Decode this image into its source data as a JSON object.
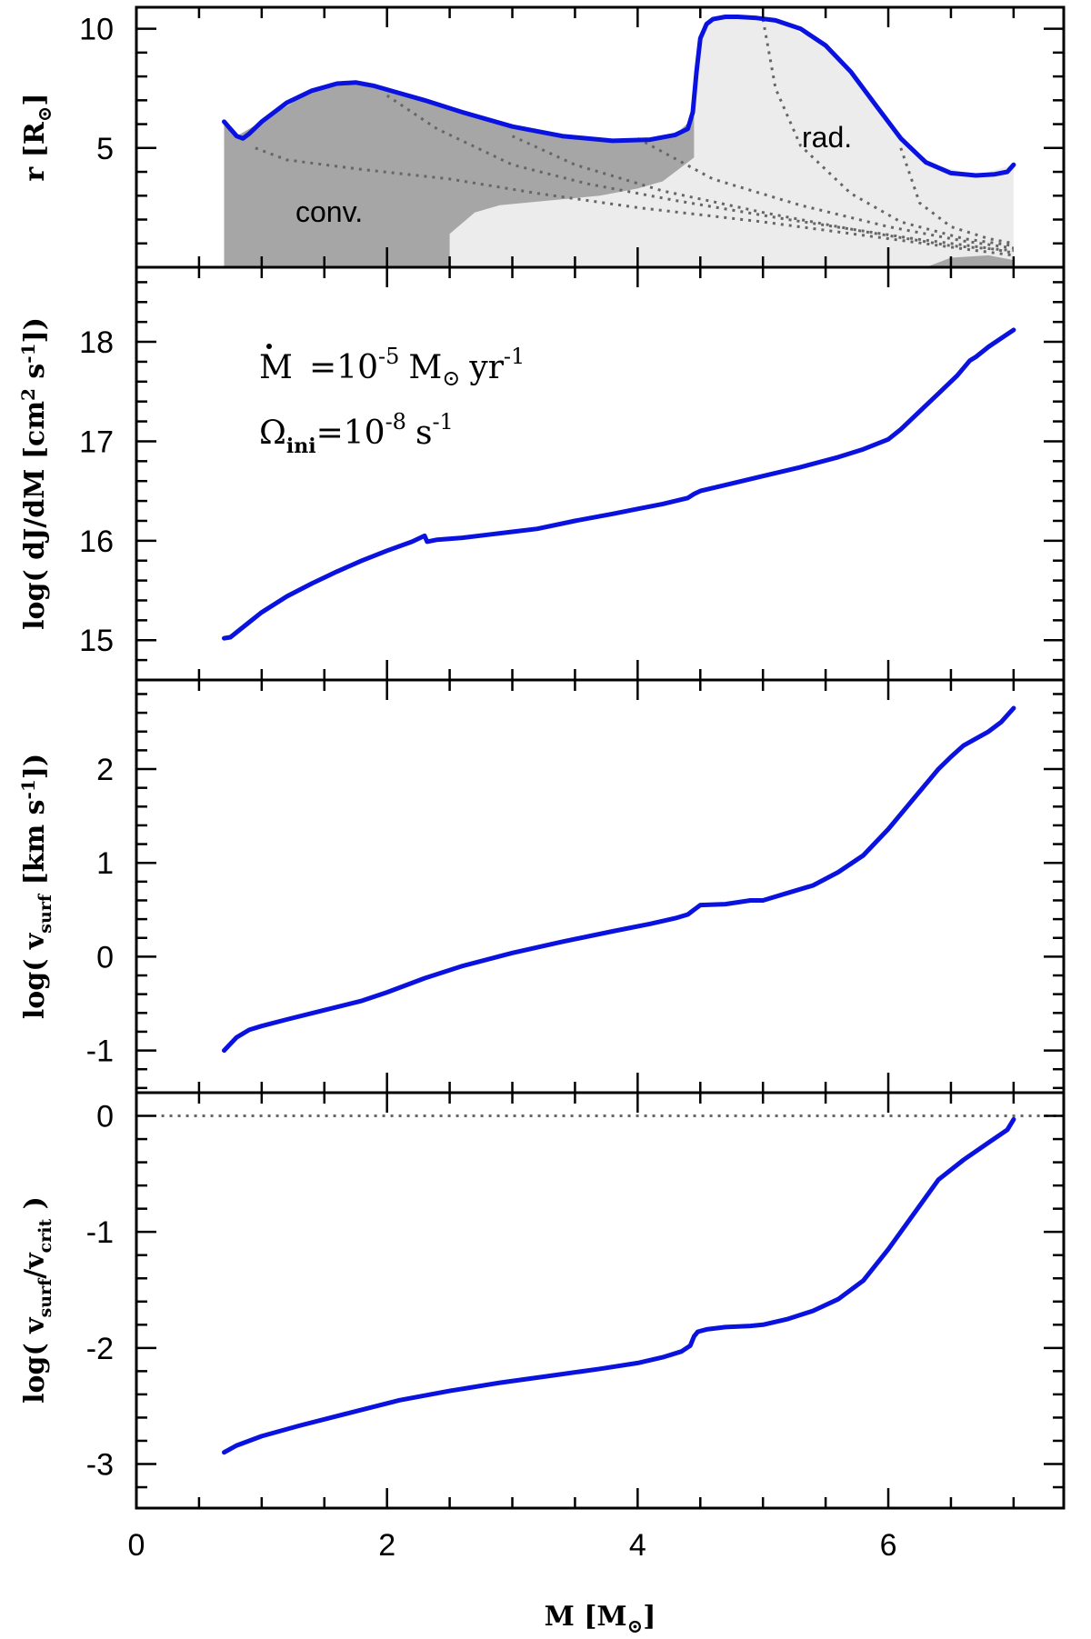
{
  "chart_data": [
    {
      "type": "area",
      "panel": "radius",
      "ylabel": "r [R⊙]",
      "ylabel_parts": {
        "main": "r [R",
        "sub": "⊙",
        "close": "]"
      },
      "xlim": [
        0,
        7.4
      ],
      "ylim": [
        0,
        10.9
      ],
      "yticks_major": [
        5,
        10
      ],
      "region_labels": {
        "convective": "conv.",
        "radiative": "rad."
      },
      "surface_radius": {
        "x": [
          0.7,
          0.75,
          0.8,
          0.85,
          0.9,
          1.0,
          1.2,
          1.4,
          1.6,
          1.75,
          1.9,
          2.1,
          2.3,
          2.6,
          3.0,
          3.4,
          3.8,
          4.1,
          4.3,
          4.4,
          4.44,
          4.47,
          4.5,
          4.55,
          4.6,
          4.7,
          4.8,
          4.95,
          5.1,
          5.3,
          5.5,
          5.7,
          5.9,
          6.1,
          6.3,
          6.5,
          6.7,
          6.85,
          6.95,
          7.0
        ],
        "y": [
          6.1,
          5.8,
          5.5,
          5.4,
          5.6,
          6.1,
          6.9,
          7.4,
          7.7,
          7.75,
          7.6,
          7.3,
          7.0,
          6.5,
          5.9,
          5.5,
          5.3,
          5.35,
          5.55,
          5.8,
          6.5,
          8.2,
          9.6,
          10.2,
          10.4,
          10.5,
          10.5,
          10.45,
          10.35,
          10.0,
          9.3,
          8.2,
          6.8,
          5.4,
          4.4,
          3.95,
          3.85,
          3.9,
          4.0,
          4.3
        ]
      },
      "convective_region": {
        "x": [
          0.7,
          0.8,
          1.0,
          1.4,
          1.75,
          2.1,
          2.5,
          3.0,
          3.4,
          3.8,
          4.1,
          4.3,
          4.45,
          4.45,
          4.2,
          4.0,
          3.7,
          3.3,
          2.9,
          2.7,
          2.5,
          2.5,
          0.7
        ],
        "y": [
          6.1,
          5.5,
          6.1,
          7.4,
          7.75,
          7.3,
          6.7,
          5.9,
          5.5,
          5.3,
          5.35,
          5.55,
          6.3,
          4.6,
          3.6,
          3.3,
          3.0,
          2.8,
          2.6,
          2.3,
          1.4,
          0,
          0
        ]
      },
      "radiative_region": {
        "x": [
          2.5,
          2.5,
          2.7,
          2.9,
          3.3,
          3.7,
          4.0,
          4.2,
          4.45,
          4.45,
          4.5,
          4.6,
          4.8,
          5.1,
          5.5,
          5.9,
          6.3,
          6.7,
          7.0,
          7.0
        ],
        "y": [
          0,
          1.4,
          2.3,
          2.6,
          2.8,
          3.0,
          3.3,
          3.6,
          4.6,
          6.3,
          9.6,
          10.4,
          10.5,
          10.35,
          9.3,
          6.8,
          4.4,
          3.85,
          4.3,
          0
        ]
      },
      "inner_convective_core": {
        "x": [
          6.3,
          6.5,
          6.8,
          7.0,
          7.0
        ],
        "y": [
          0,
          0.4,
          0.5,
          0.3,
          0
        ]
      },
      "mass_shell_lines": [
        {
          "x": [
            0.95,
            1.2,
            1.8,
            2.5,
            3.2,
            4.0,
            5.0,
            6.0,
            6.7,
            7.0
          ],
          "y": [
            5.0,
            4.5,
            4.1,
            3.7,
            3.1,
            2.5,
            1.9,
            1.2,
            0.7,
            0.5
          ]
        },
        {
          "x": [
            2.0,
            2.4,
            3.0,
            3.6,
            4.3,
            5.2,
            6.2,
            6.8,
            7.0
          ],
          "y": [
            7.2,
            5.8,
            4.3,
            3.5,
            2.8,
            2.0,
            1.2,
            0.8,
            0.6
          ]
        },
        {
          "x": [
            3.0,
            3.5,
            4.2,
            5.0,
            5.8,
            6.5,
            7.0
          ],
          "y": [
            5.5,
            4.3,
            3.2,
            2.3,
            1.5,
            0.9,
            0.7
          ]
        },
        {
          "x": [
            4.0,
            4.6,
            5.3,
            6.0,
            6.6,
            7.0
          ],
          "y": [
            5.4,
            3.7,
            2.6,
            1.7,
            1.1,
            0.8
          ]
        },
        {
          "x": [
            5.0,
            5.1,
            5.3,
            5.7,
            6.1,
            6.6,
            7.0
          ],
          "y": [
            10.4,
            7.5,
            5.1,
            3.1,
            1.9,
            1.2,
            0.9
          ]
        },
        {
          "x": [
            6.1,
            6.25,
            6.5,
            6.8,
            7.0
          ],
          "y": [
            5.0,
            2.7,
            1.7,
            1.2,
            1.0
          ]
        }
      ]
    },
    {
      "type": "line",
      "panel": "angular_momentum",
      "ylabel": "log( dJ/dM [cm² s⁻¹])",
      "ylabel_parts": {
        "pre": "log( dJ/dM [cm",
        "sup1": "2",
        "mid": " s",
        "sup2": "-1",
        "close": "])"
      },
      "xlim": [
        0,
        7.4
      ],
      "ylim": [
        14.6,
        18.75
      ],
      "yticks_major": [
        15,
        16,
        17,
        18
      ],
      "series": [
        {
          "x": [
            0.7,
            0.75,
            0.8,
            0.9,
            1.0,
            1.2,
            1.4,
            1.6,
            1.8,
            2.0,
            2.2,
            2.3,
            2.32,
            2.4,
            2.6,
            2.8,
            3.0,
            3.2,
            3.5,
            3.8,
            4.0,
            4.2,
            4.4,
            4.45,
            4.5,
            4.7,
            5.0,
            5.3,
            5.6,
            5.8,
            6.0,
            6.1,
            6.2,
            6.4,
            6.55,
            6.65,
            6.7,
            6.8,
            7.0
          ],
          "y": [
            15.02,
            15.03,
            15.08,
            15.18,
            15.28,
            15.44,
            15.57,
            15.69,
            15.8,
            15.9,
            15.99,
            16.05,
            15.99,
            16.01,
            16.03,
            16.06,
            16.09,
            16.12,
            16.2,
            16.27,
            16.32,
            16.37,
            16.43,
            16.47,
            16.5,
            16.56,
            16.65,
            16.74,
            16.84,
            16.92,
            17.02,
            17.12,
            17.24,
            17.48,
            17.66,
            17.81,
            17.85,
            17.95,
            18.12
          ]
        }
      ],
      "annotations": {
        "mdot_symbol": "M",
        "mdot_text": "=10",
        "mdot_exp": "-5",
        "mdot_unit": "M",
        "mdot_unit_sub": "⊙",
        "mdot_rate": "yr",
        "mdot_rate_exp": "-1",
        "omega_symbol": "Ω",
        "omega_sub": "ini",
        "omega_text": "=10",
        "omega_exp": "-8",
        "omega_unit": "s",
        "omega_unit_exp": "-1"
      }
    },
    {
      "type": "line",
      "panel": "surface_velocity",
      "ylabel": "log( v_surf [km s⁻¹])",
      "ylabel_parts": {
        "pre": "log( v",
        "sub": "surf",
        "mid": " [km s",
        "sup": "-1",
        "close": "])"
      },
      "xlim": [
        0,
        7.4
      ],
      "ylim": [
        -1.45,
        2.95
      ],
      "yticks_major": [
        -1,
        0,
        1,
        2
      ],
      "series": [
        {
          "x": [
            0.7,
            0.75,
            0.8,
            0.9,
            1.0,
            1.2,
            1.5,
            1.8,
            2.0,
            2.3,
            2.6,
            3.0,
            3.4,
            3.8,
            4.1,
            4.3,
            4.4,
            4.45,
            4.5,
            4.7,
            4.9,
            5.0,
            5.2,
            5.4,
            5.6,
            5.8,
            6.0,
            6.2,
            6.4,
            6.5,
            6.6,
            6.8,
            6.9,
            7.0
          ],
          "y": [
            -1.0,
            -0.93,
            -0.86,
            -0.78,
            -0.74,
            -0.67,
            -0.57,
            -0.47,
            -0.38,
            -0.23,
            -0.1,
            0.04,
            0.16,
            0.27,
            0.35,
            0.41,
            0.45,
            0.5,
            0.55,
            0.56,
            0.6,
            0.6,
            0.68,
            0.76,
            0.9,
            1.08,
            1.36,
            1.68,
            2.0,
            2.13,
            2.25,
            2.4,
            2.5,
            2.65
          ]
        }
      ]
    },
    {
      "type": "line",
      "panel": "critical_ratio",
      "ylabel": "log( v_surf/v_crit )",
      "ylabel_parts": {
        "pre": "log( v",
        "sub1": "surf",
        "mid": "/v",
        "sub2": "crit",
        "close": " )"
      },
      "xlabel": "M [M⊙]",
      "xlabel_parts": {
        "main": "M  [M",
        "sub": "⊙",
        "close": "]"
      },
      "xlim": [
        0,
        7.4
      ],
      "ylim": [
        -3.38,
        0.2
      ],
      "xticks_major": [
        0,
        2,
        4,
        6
      ],
      "yticks_major": [
        -3,
        -2,
        -1,
        0
      ],
      "reference_line": {
        "y": 0,
        "style": "dotted",
        "x_start": 0.2
      },
      "series": [
        {
          "x": [
            0.7,
            0.8,
            1.0,
            1.3,
            1.7,
            2.1,
            2.5,
            2.9,
            3.3,
            3.7,
            4.0,
            4.2,
            4.35,
            4.42,
            4.45,
            4.48,
            4.55,
            4.7,
            4.9,
            5.0,
            5.2,
            5.4,
            5.6,
            5.8,
            6.0,
            6.2,
            6.4,
            6.6,
            6.8,
            6.95,
            7.0
          ],
          "y": [
            -2.9,
            -2.84,
            -2.76,
            -2.67,
            -2.56,
            -2.45,
            -2.37,
            -2.3,
            -2.24,
            -2.18,
            -2.13,
            -2.08,
            -2.03,
            -1.98,
            -1.9,
            -1.86,
            -1.84,
            -1.82,
            -1.81,
            -1.8,
            -1.75,
            -1.68,
            -1.58,
            -1.42,
            -1.15,
            -0.85,
            -0.55,
            -0.38,
            -0.23,
            -0.12,
            -0.03
          ]
        }
      ]
    }
  ],
  "colors": {
    "curve": "#0a12e0",
    "convective_fill": "#a6a6a6",
    "radiative_fill": "#ececec",
    "dotted": "#666666"
  }
}
